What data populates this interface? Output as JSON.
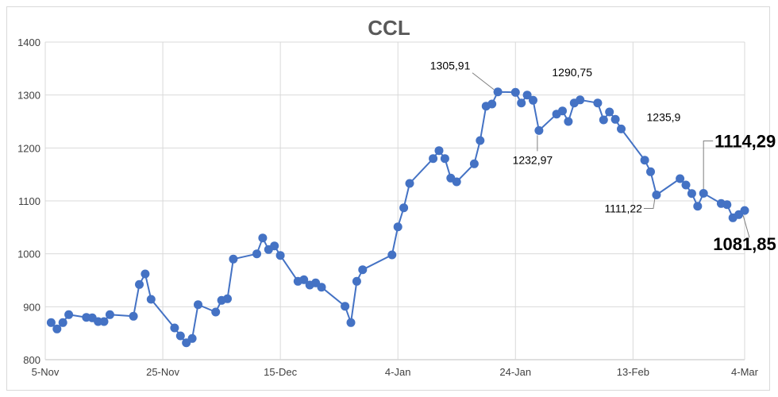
{
  "chart_data": {
    "type": "line",
    "title": "CCL",
    "xlabel": "",
    "ylabel": "",
    "ylim": [
      800,
      1400
    ],
    "yticks": [
      800,
      900,
      1000,
      1100,
      1200,
      1300,
      1400
    ],
    "xlim": [
      "2020-11-05",
      "2021-03-04"
    ],
    "xticks": [
      {
        "date": "2020-11-05",
        "label": "5-Nov"
      },
      {
        "date": "2020-11-25",
        "label": "25-Nov"
      },
      {
        "date": "2020-12-15",
        "label": "15-Dec"
      },
      {
        "date": "2021-01-04",
        "label": "4-Jan"
      },
      {
        "date": "2021-01-24",
        "label": "24-Jan"
      },
      {
        "date": "2021-02-13",
        "label": "13-Feb"
      },
      {
        "date": "2021-03-04",
        "label": "4-Mar"
      }
    ],
    "grid": true,
    "color": "#4472C4",
    "points": [
      [
        "2020-11-06",
        870
      ],
      [
        "2020-11-07",
        858
      ],
      [
        "2020-11-08",
        870
      ],
      [
        "2020-11-09",
        885
      ],
      [
        "2020-11-12",
        880
      ],
      [
        "2020-11-13",
        879
      ],
      [
        "2020-11-14",
        872
      ],
      [
        "2020-11-15",
        872
      ],
      [
        "2020-11-16",
        885
      ],
      [
        "2020-11-20",
        882
      ],
      [
        "2020-11-21",
        942
      ],
      [
        "2020-11-22",
        962
      ],
      [
        "2020-11-23",
        914
      ],
      [
        "2020-11-27",
        860
      ],
      [
        "2020-11-28",
        845
      ],
      [
        "2020-11-29",
        832
      ],
      [
        "2020-11-30",
        840
      ],
      [
        "2020-12-01",
        904
      ],
      [
        "2020-12-04",
        890
      ],
      [
        "2020-12-05",
        912
      ],
      [
        "2020-12-06",
        915
      ],
      [
        "2020-12-07",
        990
      ],
      [
        "2020-12-11",
        1000
      ],
      [
        "2020-12-12",
        1030
      ],
      [
        "2020-12-13",
        1008
      ],
      [
        "2020-12-14",
        1015
      ],
      [
        "2020-12-15",
        997
      ],
      [
        "2020-12-18",
        948
      ],
      [
        "2020-12-19",
        951
      ],
      [
        "2020-12-20",
        941
      ],
      [
        "2020-12-21",
        945
      ],
      [
        "2020-12-22",
        937
      ],
      [
        "2020-12-26",
        901
      ],
      [
        "2020-12-27",
        870
      ],
      [
        "2020-12-28",
        948
      ],
      [
        "2020-12-29",
        970
      ],
      [
        "2021-01-03",
        998
      ],
      [
        "2021-01-04",
        1051
      ],
      [
        "2021-01-05",
        1087
      ],
      [
        "2021-01-06",
        1133
      ],
      [
        "2021-01-10",
        1180
      ],
      [
        "2021-01-11",
        1195
      ],
      [
        "2021-01-12",
        1180
      ],
      [
        "2021-01-13",
        1143
      ],
      [
        "2021-01-14",
        1136
      ],
      [
        "2021-01-17",
        1170
      ],
      [
        "2021-01-18",
        1214
      ],
      [
        "2021-01-19",
        1279
      ],
      [
        "2021-01-20",
        1283
      ],
      [
        "2021-01-21",
        1305.91
      ],
      [
        "2021-01-24",
        1305
      ],
      [
        "2021-01-25",
        1285
      ],
      [
        "2021-01-26",
        1300
      ],
      [
        "2021-01-27",
        1290
      ],
      [
        "2021-01-28",
        1232.97
      ],
      [
        "2021-01-31",
        1264
      ],
      [
        "2021-02-01",
        1270
      ],
      [
        "2021-02-02",
        1250
      ],
      [
        "2021-02-03",
        1285
      ],
      [
        "2021-02-04",
        1290.75
      ],
      [
        "2021-02-07",
        1285
      ],
      [
        "2021-02-08",
        1253
      ],
      [
        "2021-02-09",
        1268
      ],
      [
        "2021-02-10",
        1254
      ],
      [
        "2021-02-11",
        1235.9
      ],
      [
        "2021-02-15",
        1177
      ],
      [
        "2021-02-16",
        1155
      ],
      [
        "2021-02-17",
        1111.22
      ],
      [
        "2021-02-21",
        1142
      ],
      [
        "2021-02-22",
        1130
      ],
      [
        "2021-02-23",
        1114
      ],
      [
        "2021-02-24",
        1090
      ],
      [
        "2021-02-25",
        1114.29
      ],
      [
        "2021-02-28",
        1095
      ],
      [
        "2021-03-01",
        1093
      ],
      [
        "2021-03-02",
        1068
      ],
      [
        "2021-03-03",
        1074
      ],
      [
        "2021-03-04",
        1081.85
      ]
    ],
    "annotations": [
      {
        "text": "1305,91",
        "date": "2021-01-21",
        "value": 1305.91,
        "emphasis": false
      },
      {
        "text": "1290,75",
        "date": "2021-02-04",
        "value": 1290.75,
        "emphasis": false
      },
      {
        "text": "1232,97",
        "date": "2021-01-28",
        "value": 1232.97,
        "emphasis": false
      },
      {
        "text": "1235,9",
        "date": "2021-02-11",
        "value": 1235.9,
        "emphasis": false
      },
      {
        "text": "1111,22",
        "date": "2021-02-17",
        "value": 1111.22,
        "emphasis": false
      },
      {
        "text": "1114,29",
        "date": "2021-02-25",
        "value": 1114.29,
        "emphasis": true
      },
      {
        "text": "1081,85",
        "date": "2021-03-04",
        "value": 1081.85,
        "emphasis": true
      }
    ]
  }
}
